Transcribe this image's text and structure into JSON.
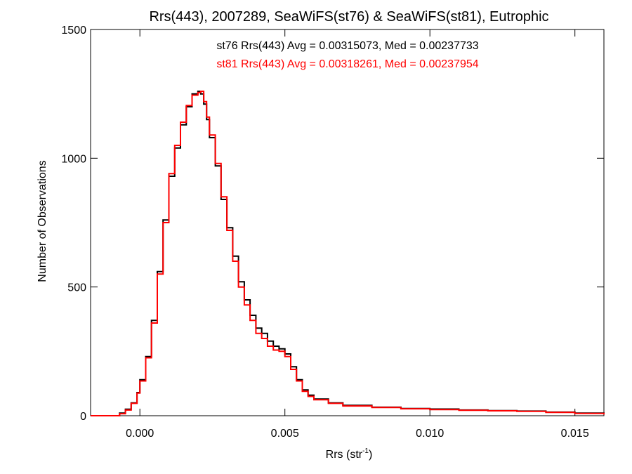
{
  "chart_data": {
    "type": "line",
    "title": "Rrs(443), 2007289, SeaWiFS(st76) & SeaWiFS(st81), Eutrophic",
    "xlabel_base": "Rrs (str",
    "xlabel_sup": "-1",
    "xlabel_tail": ")",
    "ylabel": "Number of Observations",
    "xlim": [
      -0.0017,
      0.016
    ],
    "ylim": [
      0,
      1500
    ],
    "xticks": [
      {
        "value": 0.0,
        "label": "0.000"
      },
      {
        "value": 0.005,
        "label": "0.005"
      },
      {
        "value": 0.01,
        "label": "0.010"
      },
      {
        "value": 0.015,
        "label": "0.015"
      }
    ],
    "yticks": [
      {
        "value": 0,
        "label": "0"
      },
      {
        "value": 500,
        "label": "500"
      },
      {
        "value": 1000,
        "label": "1000"
      },
      {
        "value": 1500,
        "label": "1500"
      }
    ],
    "annotations": [
      {
        "text": "st76 Rrs(443) Avg = 0.00315073, Med = 0.00237733",
        "color": "#000000"
      },
      {
        "text": "st81 Rrs(443) Avg = 0.00318261, Med = 0.00237954",
        "color": "#ff0000"
      }
    ],
    "series": [
      {
        "color": "#000000",
        "x": [
          -0.0017,
          -0.001,
          -0.0007,
          -0.0005,
          -0.0003,
          -0.0001,
          0.0,
          0.0002,
          0.0004,
          0.0006,
          0.0008,
          0.001,
          0.0012,
          0.0014,
          0.0016,
          0.0018,
          0.002,
          0.0021,
          0.0022,
          0.0023,
          0.0024,
          0.0026,
          0.0028,
          0.003,
          0.0032,
          0.0034,
          0.0036,
          0.0038,
          0.004,
          0.0042,
          0.0044,
          0.0046,
          0.0048,
          0.005,
          0.0052,
          0.0054,
          0.0056,
          0.0058,
          0.006,
          0.0065,
          0.007,
          0.008,
          0.009,
          0.01,
          0.011,
          0.012,
          0.013,
          0.014,
          0.015,
          0.016
        ],
        "y": [
          0,
          0,
          10,
          25,
          50,
          90,
          140,
          230,
          370,
          560,
          760,
          930,
          1040,
          1130,
          1200,
          1250,
          1260,
          1250,
          1210,
          1150,
          1080,
          970,
          840,
          730,
          620,
          520,
          450,
          390,
          340,
          320,
          290,
          270,
          260,
          240,
          190,
          140,
          100,
          80,
          65,
          50,
          40,
          33,
          28,
          26,
          22,
          20,
          18,
          14,
          10,
          6
        ]
      },
      {
        "color": "#ff0000",
        "x": [
          -0.0017,
          -0.001,
          -0.0007,
          -0.0005,
          -0.0003,
          -0.0001,
          0.0,
          0.0002,
          0.0004,
          0.0006,
          0.0008,
          0.001,
          0.0012,
          0.0014,
          0.0016,
          0.0018,
          0.002,
          0.0021,
          0.0022,
          0.0023,
          0.0024,
          0.0026,
          0.0028,
          0.003,
          0.0032,
          0.0034,
          0.0036,
          0.0038,
          0.004,
          0.0042,
          0.0044,
          0.0046,
          0.0048,
          0.005,
          0.0052,
          0.0054,
          0.0056,
          0.0058,
          0.006,
          0.0065,
          0.007,
          0.008,
          0.009,
          0.01,
          0.011,
          0.012,
          0.013,
          0.014,
          0.015,
          0.016
        ],
        "y": [
          0,
          0,
          8,
          22,
          48,
          88,
          135,
          225,
          360,
          550,
          750,
          940,
          1050,
          1140,
          1205,
          1245,
          1255,
          1260,
          1220,
          1160,
          1090,
          980,
          850,
          720,
          600,
          500,
          430,
          370,
          320,
          300,
          270,
          255,
          250,
          230,
          180,
          135,
          95,
          75,
          62,
          48,
          38,
          32,
          27,
          24,
          21,
          19,
          17,
          13,
          9,
          5
        ]
      }
    ],
    "grid": false,
    "legend": "none"
  }
}
